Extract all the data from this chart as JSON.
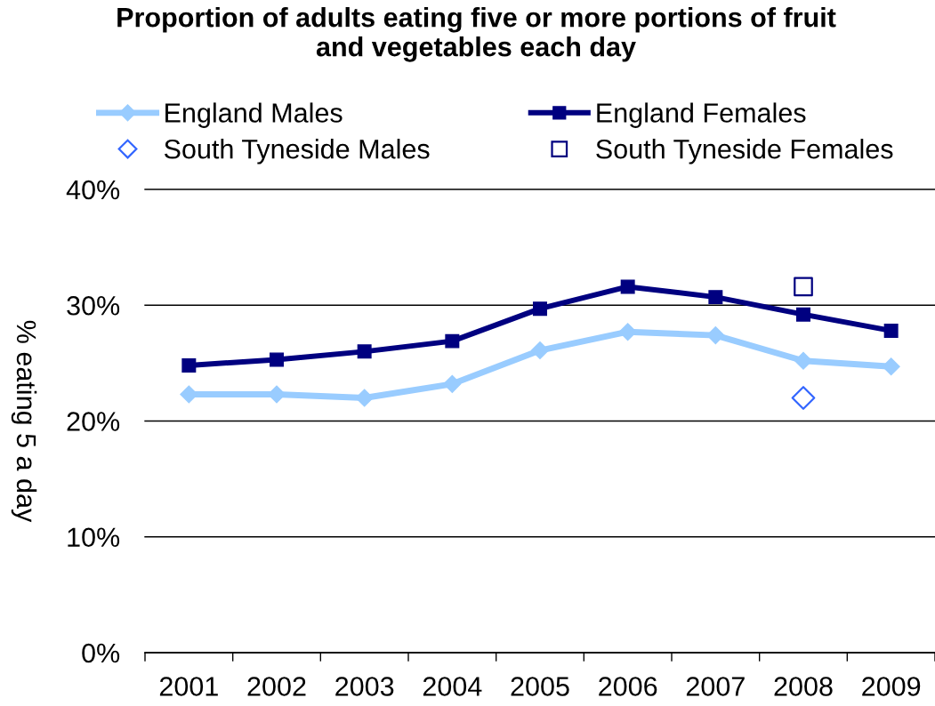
{
  "chart_data": {
    "type": "line",
    "title": "Proportion of adults eating five or more portions of fruit\nand vegetables each day",
    "ylabel": "% eating 5 a day",
    "categories": [
      "2001",
      "2002",
      "2003",
      "2004",
      "2005",
      "2006",
      "2007",
      "2008",
      "2009"
    ],
    "series": [
      {
        "name": "England Males",
        "color": "#99ccff",
        "marker": "diamond",
        "values": [
          22.3,
          22.3,
          22.0,
          23.2,
          26.1,
          27.7,
          27.4,
          25.2,
          24.7
        ]
      },
      {
        "name": "England Females",
        "color": "#000080",
        "marker": "square",
        "values": [
          24.8,
          25.3,
          26.0,
          26.9,
          29.7,
          31.6,
          30.7,
          29.2,
          27.8
        ]
      },
      {
        "name": "South Tyneside Males",
        "type": "scatter",
        "color": "#3366ff",
        "marker": "diamond",
        "values": [
          null,
          null,
          null,
          null,
          null,
          null,
          null,
          22.0,
          null
        ]
      },
      {
        "name": "South Tyneside Females",
        "type": "scatter",
        "color": "#000080",
        "marker": "square",
        "values": [
          null,
          null,
          null,
          null,
          null,
          null,
          null,
          31.6,
          null
        ]
      }
    ],
    "ylim": [
      0,
      40
    ],
    "yticks": [
      {
        "value": 0,
        "label": "0%"
      },
      {
        "value": 10,
        "label": "10%"
      },
      {
        "value": 20,
        "label": "20%"
      },
      {
        "value": 30,
        "label": "30%"
      },
      {
        "value": 40,
        "label": "40%"
      }
    ],
    "grid": "y",
    "legend": "top",
    "line_style": "solid"
  }
}
